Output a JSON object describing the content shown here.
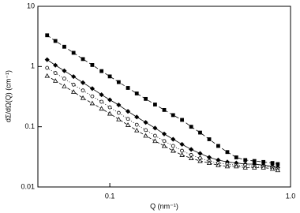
{
  "chart_data": {
    "type": "scatter",
    "x_label": "Q (nm⁻¹)",
    "y_label": "dΣ/dΩ(Q) (cm⁻¹)",
    "x": [
      0.045,
      0.05,
      0.056,
      0.063,
      0.071,
      0.08,
      0.09,
      0.1,
      0.112,
      0.126,
      0.141,
      0.158,
      0.178,
      0.2,
      0.224,
      0.251,
      0.282,
      0.316,
      0.355,
      0.398,
      0.447,
      0.501,
      0.562,
      0.631,
      0.708,
      0.794,
      0.85
    ],
    "series": [
      {
        "color": "#000000",
        "marker": "square",
        "filled": true,
        "dash": "5,3",
        "values": [
          3.3,
          2.66,
          2.13,
          1.69,
          1.33,
          1.06,
          0.84,
          0.685,
          0.551,
          0.441,
          0.357,
          0.29,
          0.234,
          0.19,
          0.156,
          0.13,
          0.1,
          0.08,
          0.062,
          0.048,
          0.038,
          0.031,
          0.028,
          0.027,
          0.026,
          0.025,
          0.024
        ]
      },
      {
        "color": "#000000",
        "marker": "diamond",
        "filled": true,
        "dash": "1,0",
        "values": [
          1.3,
          1.05,
          0.85,
          0.68,
          0.54,
          0.43,
          0.34,
          0.28,
          0.23,
          0.18,
          0.145,
          0.118,
          0.095,
          0.076,
          0.062,
          0.051,
          0.042,
          0.036,
          0.031,
          0.028,
          0.026,
          0.025,
          0.024,
          0.024,
          0.023,
          0.022,
          0.021
        ]
      },
      {
        "color": "#000000",
        "marker": "circle",
        "filled": false,
        "dash": "1,2",
        "values": [
          0.95,
          0.78,
          0.63,
          0.5,
          0.4,
          0.32,
          0.26,
          0.21,
          0.17,
          0.135,
          0.108,
          0.088,
          0.071,
          0.058,
          0.048,
          0.04,
          0.034,
          0.03,
          0.027,
          0.025,
          0.024,
          0.023,
          0.023,
          0.022,
          0.022,
          0.021,
          0.02
        ]
      },
      {
        "color": "#000000",
        "marker": "triangle",
        "filled": false,
        "dash": "4,2",
        "values": [
          0.7,
          0.58,
          0.47,
          0.38,
          0.3,
          0.245,
          0.2,
          0.165,
          0.133,
          0.107,
          0.087,
          0.071,
          0.058,
          0.048,
          0.04,
          0.034,
          0.03,
          0.027,
          0.025,
          0.023,
          0.022,
          0.022,
          0.021,
          0.021,
          0.021,
          0.02,
          0.019
        ]
      }
    ],
    "xlim": [
      0.04,
      1
    ],
    "ylim": [
      0.01,
      10
    ],
    "xscale": "log",
    "yscale": "log",
    "xticks": [
      0.1,
      {
        "value": 1,
        "label": "1.0"
      }
    ],
    "yticks": [
      0.01,
      0.1,
      1,
      10
    ]
  }
}
